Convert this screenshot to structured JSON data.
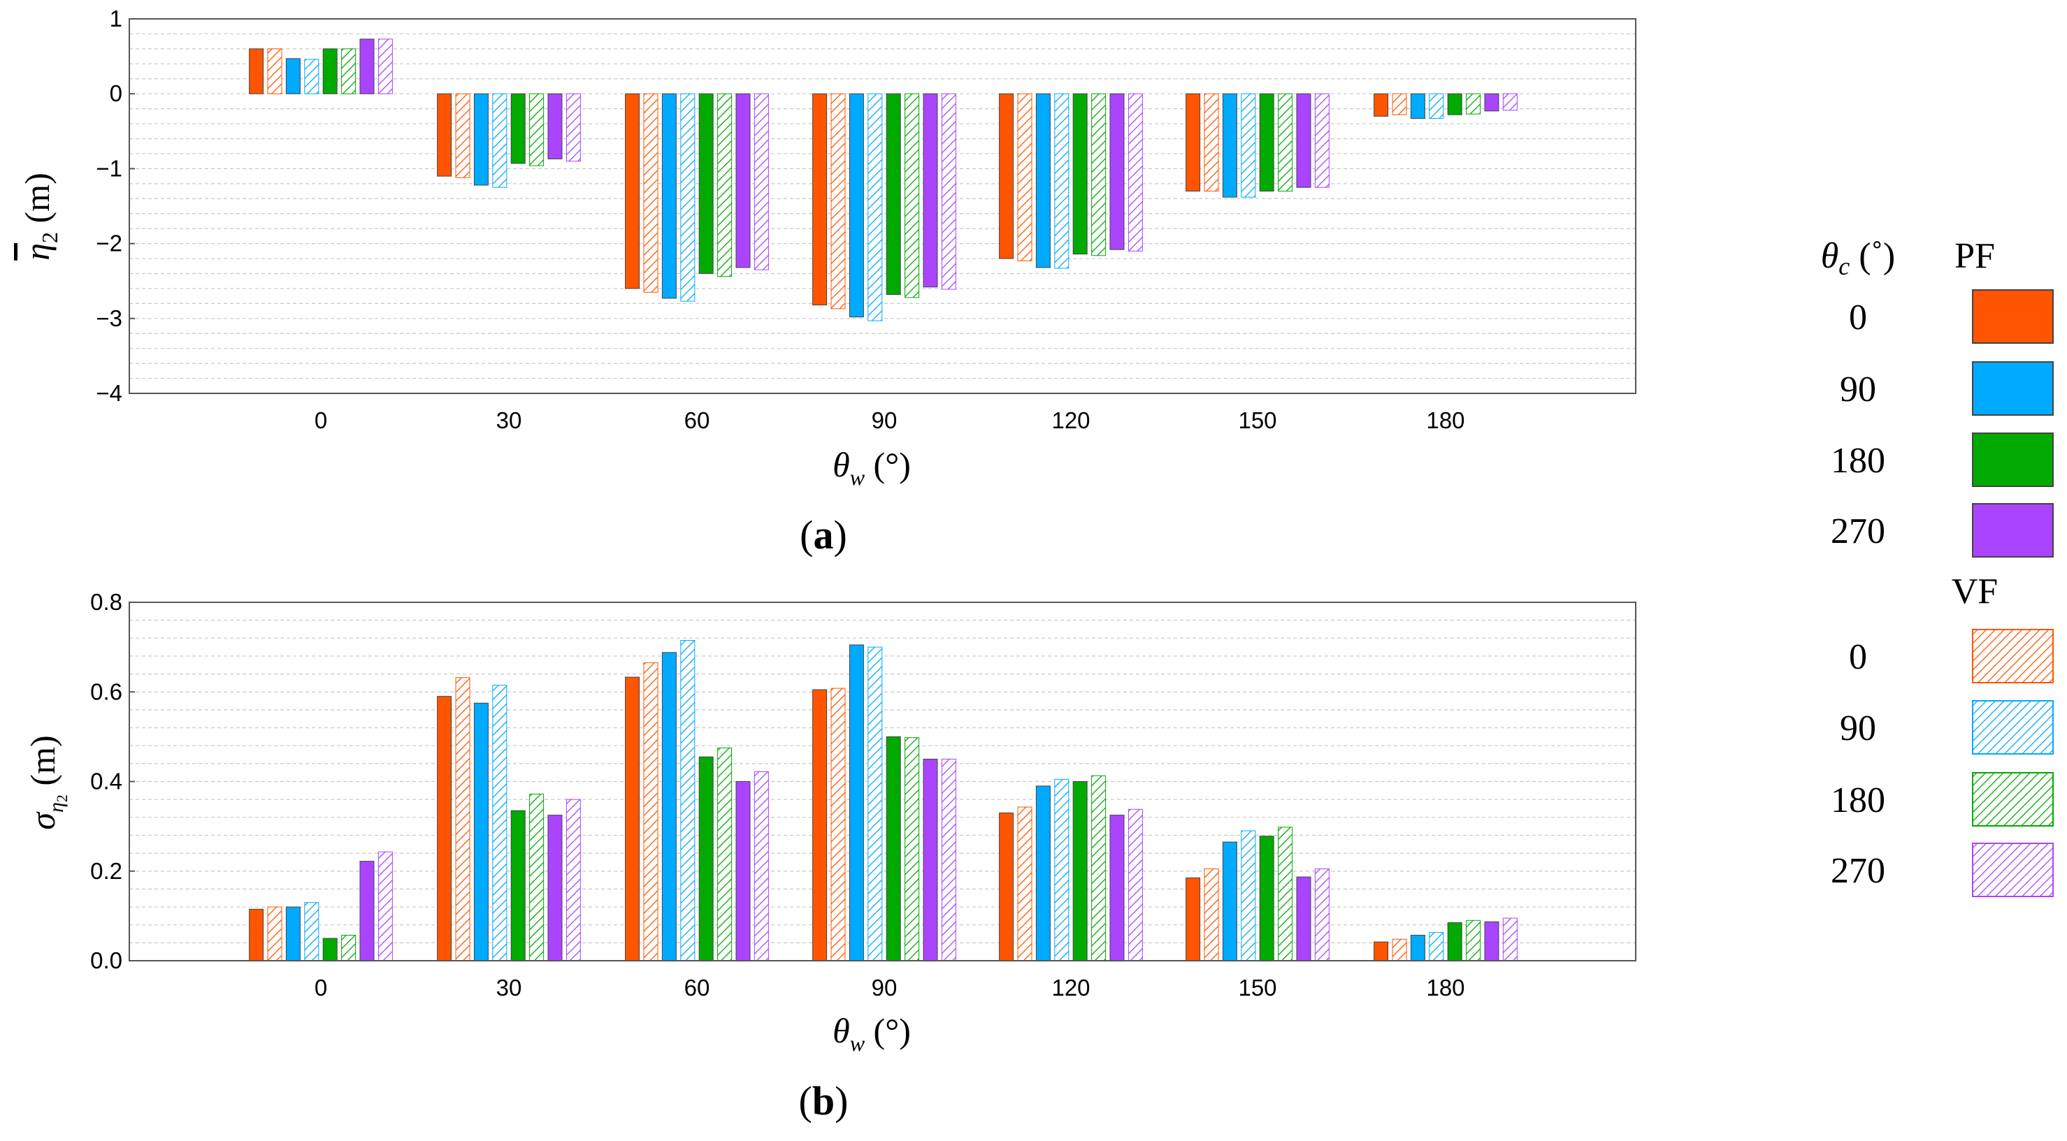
{
  "colors": {
    "0": "#ff5500",
    "90": "#00aaff",
    "180": "#00aa00",
    "270": "#aa44ff",
    "frame": "#555555",
    "grid": "#c8c8c8"
  },
  "legend": {
    "theta_c_symbol": "θ",
    "theta_c_sub": "c",
    "theta_c_unit": " (˚)",
    "pf_label": "PF",
    "vf_label": "VF",
    "items": [
      "0",
      "90",
      "180",
      "270"
    ]
  },
  "chart_data": [
    {
      "type": "bar",
      "panel_label": "a",
      "ylabel_symbol": "η",
      "ylabel_sub": "2",
      "ylabel_unit": " (m)",
      "xlabel_symbol": "θ",
      "xlabel_sub": "w",
      "xlabel_unit": " (°)",
      "categories": [
        "0",
        "30",
        "60",
        "90",
        "120",
        "150",
        "180"
      ],
      "ylim": [
        -4,
        1
      ],
      "yticks": [
        {
          "value": 1,
          "label": "1"
        },
        {
          "value": 0,
          "label": "0"
        },
        {
          "value": -1,
          "label": "−1"
        },
        {
          "value": -2,
          "label": "−2"
        },
        {
          "value": -3,
          "label": "−3"
        },
        {
          "value": -4,
          "label": "−4"
        }
      ],
      "series": [
        {
          "name": "PF 0",
          "theta_c": "0",
          "method": "PF",
          "values": [
            0.6,
            -1.1,
            -2.6,
            -2.82,
            -2.2,
            -1.3,
            -0.3
          ]
        },
        {
          "name": "VF 0",
          "theta_c": "0",
          "method": "VF",
          "values": [
            0.6,
            -1.12,
            -2.65,
            -2.87,
            -2.23,
            -1.3,
            -0.28
          ]
        },
        {
          "name": "PF 90",
          "theta_c": "90",
          "method": "PF",
          "values": [
            0.47,
            -1.22,
            -2.73,
            -2.98,
            -2.32,
            -1.38,
            -0.33
          ]
        },
        {
          "name": "VF 90",
          "theta_c": "90",
          "method": "VF",
          "values": [
            0.46,
            -1.25,
            -2.77,
            -3.03,
            -2.33,
            -1.38,
            -0.33
          ]
        },
        {
          "name": "PF 180",
          "theta_c": "180",
          "method": "PF",
          "values": [
            0.6,
            -0.93,
            -2.4,
            -2.68,
            -2.14,
            -1.3,
            -0.28
          ]
        },
        {
          "name": "VF 180",
          "theta_c": "180",
          "method": "VF",
          "values": [
            0.6,
            -0.96,
            -2.44,
            -2.72,
            -2.16,
            -1.3,
            -0.27
          ]
        },
        {
          "name": "PF 270",
          "theta_c": "270",
          "method": "PF",
          "values": [
            0.73,
            -0.87,
            -2.32,
            -2.58,
            -2.08,
            -1.25,
            -0.23
          ]
        },
        {
          "name": "VF 270",
          "theta_c": "270",
          "method": "VF",
          "values": [
            0.73,
            -0.9,
            -2.35,
            -2.61,
            -2.1,
            -1.25,
            -0.22
          ]
        }
      ]
    },
    {
      "type": "bar",
      "panel_label": "b",
      "ylabel_symbol": "σ",
      "ylabel_sub": "η",
      "ylabel_subsub": "2",
      "ylabel_unit": " (m)",
      "xlabel_symbol": "θ",
      "xlabel_sub": "w",
      "xlabel_unit": " (°)",
      "categories": [
        "0",
        "30",
        "60",
        "90",
        "120",
        "150",
        "180"
      ],
      "ylim": [
        0,
        0.8
      ],
      "yticks": [
        {
          "value": 0.8,
          "label": "0.8"
        },
        {
          "value": 0.6,
          "label": "0.6"
        },
        {
          "value": 0.4,
          "label": "0.4"
        },
        {
          "value": 0.2,
          "label": "0.2"
        },
        {
          "value": 0.0,
          "label": "0.0"
        }
      ],
      "series": [
        {
          "name": "PF 0",
          "theta_c": "0",
          "method": "PF",
          "values": [
            0.115,
            0.59,
            0.633,
            0.605,
            0.33,
            0.185,
            0.042
          ]
        },
        {
          "name": "VF 0",
          "theta_c": "0",
          "method": "VF",
          "values": [
            0.12,
            0.632,
            0.665,
            0.608,
            0.343,
            0.205,
            0.048
          ]
        },
        {
          "name": "PF 90",
          "theta_c": "90",
          "method": "PF",
          "values": [
            0.12,
            0.575,
            0.688,
            0.705,
            0.39,
            0.265,
            0.057
          ]
        },
        {
          "name": "VF 90",
          "theta_c": "90",
          "method": "VF",
          "values": [
            0.13,
            0.615,
            0.715,
            0.7,
            0.405,
            0.29,
            0.063
          ]
        },
        {
          "name": "PF 180",
          "theta_c": "180",
          "method": "PF",
          "values": [
            0.05,
            0.335,
            0.455,
            0.5,
            0.4,
            0.278,
            0.085
          ]
        },
        {
          "name": "VF 180",
          "theta_c": "180",
          "method": "VF",
          "values": [
            0.057,
            0.372,
            0.475,
            0.498,
            0.413,
            0.298,
            0.09
          ]
        },
        {
          "name": "PF 270",
          "theta_c": "270",
          "method": "PF",
          "values": [
            0.222,
            0.325,
            0.4,
            0.45,
            0.325,
            0.187,
            0.087
          ]
        },
        {
          "name": "VF 270",
          "theta_c": "270",
          "method": "VF",
          "values": [
            0.243,
            0.36,
            0.422,
            0.45,
            0.338,
            0.205,
            0.095
          ]
        }
      ]
    }
  ]
}
